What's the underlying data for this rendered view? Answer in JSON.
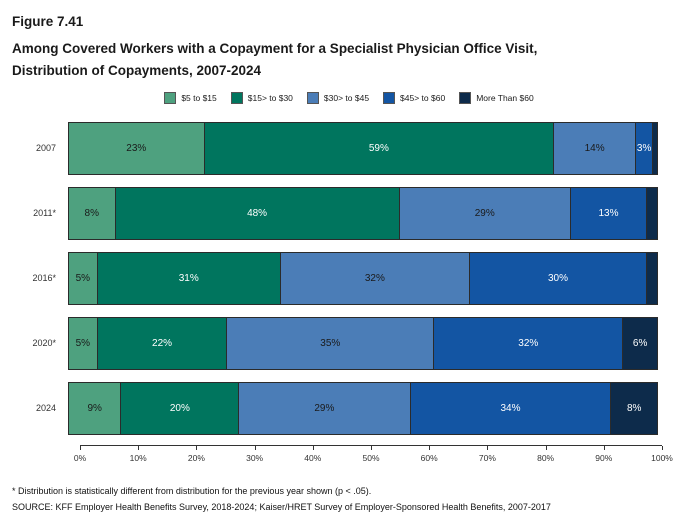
{
  "header": {
    "figure_number": "Figure 7.41",
    "title_line1": "Among Covered Workers with a Copayment for a Specialist Physician Office Visit,",
    "title_line2": "Distribution of Copayments, 2007-2024"
  },
  "chart_data": {
    "type": "bar",
    "stacked": true,
    "orientation": "horizontal",
    "unit": "%",
    "title": "Among Covered Workers with a Copayment for a Specialist Physician Office Visit, Distribution of Copayments, 2007-2024",
    "categories": [
      "2007",
      "2011*",
      "2016*",
      "2020*",
      "2024"
    ],
    "series": [
      {
        "name": "$5 to $15",
        "color": "#4EA17F",
        "label_color": "#1a1a1a",
        "values": [
          23,
          8,
          5,
          5,
          9
        ],
        "labels": [
          "23%",
          "8%",
          "5%",
          "5%",
          "9%"
        ]
      },
      {
        "name": "$15> to $30",
        "color": "#00755E",
        "label_color": "#ffffff",
        "values": [
          59,
          48,
          31,
          22,
          20
        ],
        "labels": [
          "59%",
          "48%",
          "31%",
          "22%",
          "20%"
        ]
      },
      {
        "name": "$30> to  $45",
        "color": "#4B7DB7",
        "label_color": "#1a1a1a",
        "values": [
          14,
          29,
          32,
          35,
          29
        ],
        "labels": [
          "14%",
          "29%",
          "32%",
          "35%",
          "29%"
        ]
      },
      {
        "name": "$45> to $60",
        "color": "#1355A3",
        "label_color": "#ffffff",
        "values": [
          3,
          13,
          30,
          32,
          34
        ],
        "labels": [
          "3%",
          "13%",
          "30%",
          "32%",
          "34%"
        ]
      },
      {
        "name": "More Than $60",
        "color": "#0D2B4B",
        "label_color": "#ffffff",
        "values": [
          1,
          2,
          2,
          6,
          8
        ],
        "labels": [
          "",
          "",
          "",
          "6%",
          "8%"
        ]
      }
    ],
    "x_axis": {
      "min": 0,
      "max": 100,
      "ticks": [
        "0%",
        "10%",
        "20%",
        "30%",
        "40%",
        "50%",
        "60%",
        "70%",
        "80%",
        "90%",
        "100%"
      ]
    },
    "legend_position": "top",
    "grid": false
  },
  "footnotes": {
    "note": "* Distribution is statistically different from distribution for the previous year shown (p < .05).",
    "source": "SOURCE: KFF Employer Health Benefits Survey, 2018-2024; Kaiser/HRET Survey of Employer-Sponsored Health Benefits, 2007-2017"
  }
}
